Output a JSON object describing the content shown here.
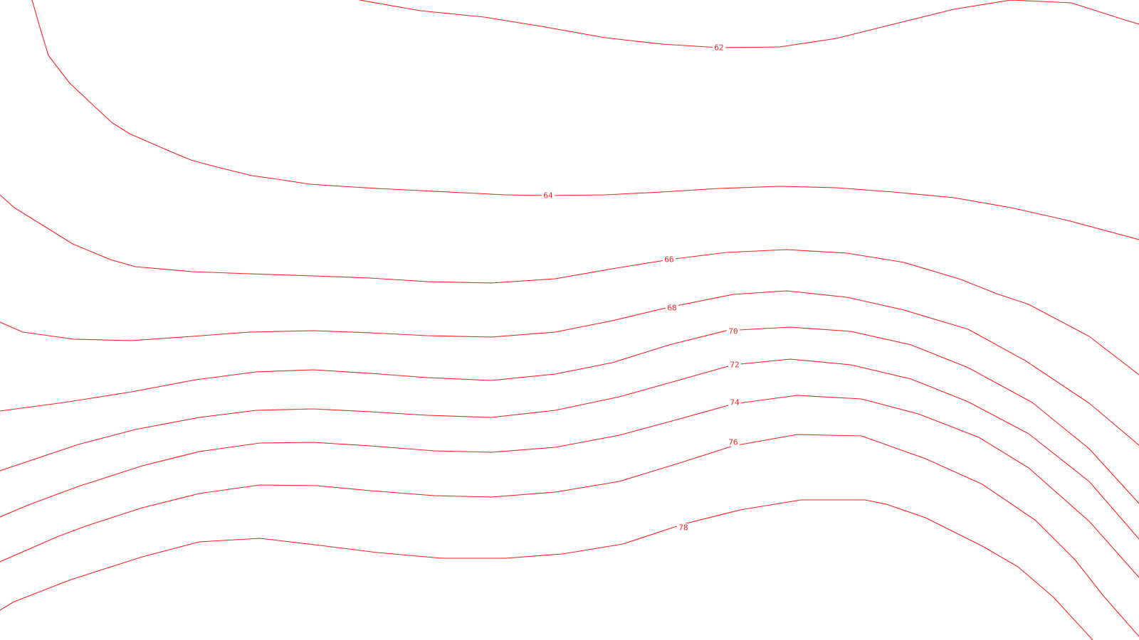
{
  "map": {
    "line_color": "#ff2020",
    "background": "#ffffff",
    "contours": [
      {
        "value": "62"
      },
      {
        "value": "64"
      },
      {
        "value": "66"
      },
      {
        "value": "68"
      },
      {
        "value": "70"
      },
      {
        "value": "72"
      },
      {
        "value": "74"
      },
      {
        "value": "76"
      },
      {
        "value": "78"
      }
    ]
  }
}
